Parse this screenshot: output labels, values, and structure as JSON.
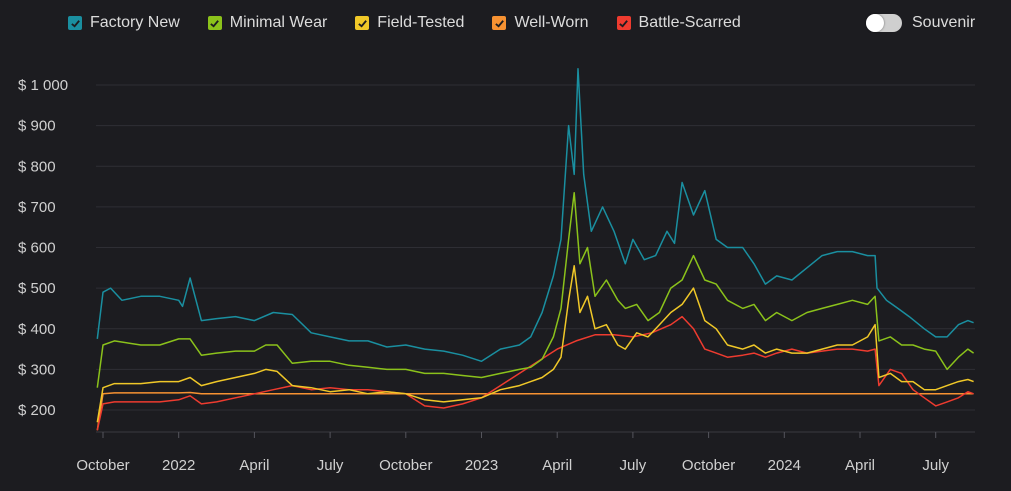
{
  "legend": [
    {
      "label": "Factory New",
      "color": "#1a8fa0"
    },
    {
      "label": "Minimal Wear",
      "color": "#8bc21b"
    },
    {
      "label": "Field-Tested",
      "color": "#f0c828"
    },
    {
      "label": "Well-Worn",
      "color": "#f79232"
    },
    {
      "label": "Battle-Scarred",
      "color": "#ee3b2f"
    }
  ],
  "toggle": {
    "label": "Souvenir",
    "on": false
  },
  "chart_data": {
    "type": "line",
    "yticks": [
      "$ 200",
      "$ 300",
      "$ 400",
      "$ 500",
      "$ 600",
      "$ 700",
      "$ 800",
      "$ 900",
      "$ 1 000"
    ],
    "ytick_values": [
      200,
      300,
      400,
      500,
      600,
      700,
      800,
      900,
      1000
    ],
    "ylim": [
      150,
      1050
    ],
    "xlim": [
      0,
      23
    ],
    "xticks": [
      {
        "label": "October",
        "pos": 0
      },
      {
        "label": "2022",
        "pos": 2
      },
      {
        "label": "April",
        "pos": 4
      },
      {
        "label": "July",
        "pos": 6
      },
      {
        "label": "October",
        "pos": 8
      },
      {
        "label": "2023",
        "pos": 10
      },
      {
        "label": "April",
        "pos": 12
      },
      {
        "label": "July",
        "pos": 14
      },
      {
        "label": "October",
        "pos": 16
      },
      {
        "label": "2024",
        "pos": 18
      },
      {
        "label": "April",
        "pos": 20
      },
      {
        "label": "July",
        "pos": 22
      }
    ],
    "series": [
      {
        "name": "Factory New",
        "color": "#1a8fa0",
        "x": [
          -0.15,
          0,
          0.2,
          0.5,
          1,
          1.5,
          2,
          2.1,
          2.3,
          2.6,
          3,
          3.5,
          4,
          4.5,
          5,
          5.5,
          6,
          6.5,
          7,
          7.5,
          8,
          8.5,
          9,
          9.5,
          10,
          10.5,
          11,
          11.3,
          11.6,
          11.9,
          12.1,
          12.3,
          12.45,
          12.55,
          12.7,
          12.9,
          13.2,
          13.5,
          13.8,
          14,
          14.3,
          14.6,
          14.9,
          15.1,
          15.3,
          15.6,
          15.9,
          16.2,
          16.5,
          16.9,
          17.2,
          17.5,
          17.8,
          18.2,
          18.6,
          19,
          19.4,
          19.8,
          20.2,
          20.4,
          20.45,
          20.7,
          21,
          21.3,
          21.7,
          22,
          22.3,
          22.6,
          22.85,
          23
        ],
        "y": [
          375,
          490,
          500,
          470,
          480,
          480,
          470,
          455,
          525,
          420,
          425,
          430,
          420,
          440,
          435,
          390,
          380,
          370,
          370,
          355,
          360,
          350,
          345,
          335,
          320,
          350,
          360,
          380,
          440,
          530,
          620,
          900,
          780,
          1040,
          780,
          640,
          700,
          640,
          560,
          620,
          570,
          580,
          640,
          610,
          760,
          680,
          740,
          620,
          600,
          600,
          560,
          510,
          530,
          520,
          550,
          580,
          590,
          590,
          580,
          580,
          500,
          470,
          450,
          430,
          400,
          380,
          380,
          410,
          420,
          415
        ]
      },
      {
        "name": "Minimal Wear",
        "color": "#8bc21b",
        "x": [
          -0.15,
          0,
          0.3,
          1,
          1.5,
          2,
          2.3,
          2.6,
          3,
          3.5,
          4,
          4.3,
          4.6,
          5,
          5.5,
          6,
          6.5,
          7,
          7.5,
          8,
          8.5,
          9,
          9.5,
          10,
          10.5,
          11,
          11.3,
          11.6,
          11.9,
          12.1,
          12.3,
          12.45,
          12.6,
          12.8,
          13,
          13.3,
          13.6,
          13.8,
          14.1,
          14.4,
          14.7,
          15,
          15.3,
          15.6,
          15.9,
          16.2,
          16.5,
          16.9,
          17.2,
          17.5,
          17.8,
          18.2,
          18.6,
          19,
          19.4,
          19.8,
          20.2,
          20.4,
          20.5,
          20.8,
          21.1,
          21.4,
          21.7,
          22,
          22.3,
          22.6,
          22.85,
          23
        ],
        "y": [
          255,
          360,
          370,
          360,
          360,
          375,
          375,
          335,
          340,
          345,
          345,
          360,
          360,
          315,
          320,
          320,
          310,
          305,
          300,
          300,
          290,
          290,
          285,
          280,
          290,
          300,
          305,
          325,
          380,
          450,
          620,
          735,
          560,
          600,
          480,
          520,
          470,
          450,
          460,
          420,
          440,
          500,
          520,
          580,
          520,
          510,
          470,
          450,
          460,
          420,
          440,
          420,
          440,
          450,
          460,
          470,
          460,
          480,
          370,
          380,
          360,
          360,
          350,
          345,
          300,
          330,
          350,
          340
        ]
      },
      {
        "name": "Field-Tested",
        "color": "#f0c828",
        "x": [
          -0.15,
          0,
          0.3,
          1,
          1.5,
          2,
          2.3,
          2.6,
          3,
          3.5,
          4,
          4.3,
          4.6,
          5,
          5.5,
          6,
          6.5,
          7,
          7.5,
          8,
          8.5,
          9,
          9.5,
          10,
          10.5,
          11,
          11.3,
          11.6,
          11.9,
          12.1,
          12.3,
          12.45,
          12.6,
          12.8,
          13,
          13.3,
          13.6,
          13.8,
          14.1,
          14.4,
          14.7,
          15,
          15.3,
          15.6,
          15.9,
          16.2,
          16.5,
          16.9,
          17.2,
          17.5,
          17.8,
          18.2,
          18.6,
          19,
          19.4,
          19.8,
          20.2,
          20.4,
          20.5,
          20.8,
          21.1,
          21.4,
          21.7,
          22,
          22.3,
          22.6,
          22.85,
          23
        ],
        "y": [
          170,
          255,
          265,
          265,
          270,
          270,
          280,
          260,
          270,
          280,
          290,
          300,
          295,
          260,
          255,
          245,
          250,
          240,
          245,
          240,
          225,
          220,
          225,
          230,
          250,
          260,
          270,
          280,
          300,
          330,
          470,
          555,
          440,
          480,
          400,
          410,
          360,
          350,
          390,
          380,
          410,
          440,
          460,
          500,
          420,
          400,
          360,
          350,
          360,
          340,
          350,
          340,
          340,
          350,
          360,
          360,
          380,
          410,
          280,
          290,
          270,
          270,
          250,
          250,
          260,
          270,
          275,
          270
        ]
      },
      {
        "name": "Well-Worn",
        "color": "#f79232",
        "x": [
          -0.15,
          0,
          0.3,
          1,
          1.5,
          2,
          2.3,
          2.6,
          3,
          3.5,
          4,
          4.5,
          5,
          5.5,
          6,
          7,
          8,
          9,
          10,
          11,
          12,
          13,
          14,
          15,
          16,
          17,
          18,
          19,
          20,
          20.4,
          21,
          21.5,
          22,
          22.3,
          22.6,
          22.85,
          23
        ],
        "y": [
          150,
          240,
          242,
          242,
          242,
          242,
          243,
          240,
          240,
          240,
          240,
          240,
          240,
          240,
          240,
          240,
          240,
          240,
          240,
          240,
          240,
          240,
          240,
          240,
          240,
          240,
          240,
          240,
          240,
          240,
          240,
          240,
          240,
          240,
          240,
          240,
          240
        ]
      },
      {
        "name": "Battle-Scarred",
        "color": "#ee3b2f",
        "x": [
          -0.15,
          0,
          0.3,
          1,
          1.5,
          2,
          2.3,
          2.6,
          3,
          3.5,
          4,
          4.5,
          5,
          5.5,
          6,
          6.5,
          7,
          7.5,
          8,
          8.5,
          9,
          9.5,
          10,
          10.5,
          11,
          11.5,
          12,
          12.5,
          13,
          13.5,
          14,
          14.5,
          15,
          15.3,
          15.6,
          15.9,
          16.2,
          16.5,
          16.9,
          17.2,
          17.5,
          17.8,
          18.2,
          18.6,
          19,
          19.4,
          19.8,
          20.2,
          20.4,
          20.5,
          20.8,
          21.1,
          21.4,
          21.7,
          22,
          22.3,
          22.6,
          22.85,
          23
        ],
        "y": [
          150,
          215,
          220,
          220,
          220,
          225,
          235,
          215,
          220,
          230,
          240,
          250,
          260,
          250,
          255,
          250,
          250,
          245,
          240,
          210,
          205,
          215,
          230,
          260,
          290,
          320,
          350,
          370,
          385,
          385,
          380,
          390,
          410,
          430,
          400,
          350,
          340,
          330,
          335,
          340,
          330,
          340,
          350,
          340,
          345,
          350,
          350,
          345,
          350,
          260,
          300,
          290,
          250,
          230,
          210,
          220,
          230,
          245,
          240
        ]
      }
    ]
  }
}
